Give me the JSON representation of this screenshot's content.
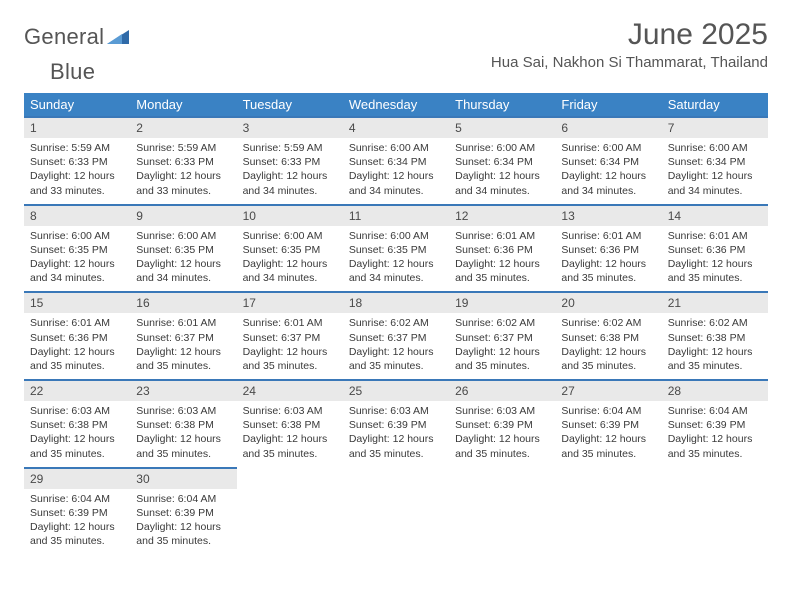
{
  "brand": {
    "word1": "General",
    "word2": "Blue"
  },
  "title": "June 2025",
  "location": "Hua Sai, Nakhon Si Thammarat, Thailand",
  "colors": {
    "header_bg": "#3a82c4",
    "header_fg": "#ffffff",
    "daynum_bg": "#e9e9e9",
    "rule": "#3a78b8",
    "text": "#3a3a3a",
    "title": "#555555"
  },
  "weekdays": [
    "Sunday",
    "Monday",
    "Tuesday",
    "Wednesday",
    "Thursday",
    "Friday",
    "Saturday"
  ],
  "weeks": [
    [
      {
        "n": "1",
        "sr": "5:59 AM",
        "ss": "6:33 PM",
        "dl": "12 hours and 33 minutes."
      },
      {
        "n": "2",
        "sr": "5:59 AM",
        "ss": "6:33 PM",
        "dl": "12 hours and 33 minutes."
      },
      {
        "n": "3",
        "sr": "5:59 AM",
        "ss": "6:33 PM",
        "dl": "12 hours and 34 minutes."
      },
      {
        "n": "4",
        "sr": "6:00 AM",
        "ss": "6:34 PM",
        "dl": "12 hours and 34 minutes."
      },
      {
        "n": "5",
        "sr": "6:00 AM",
        "ss": "6:34 PM",
        "dl": "12 hours and 34 minutes."
      },
      {
        "n": "6",
        "sr": "6:00 AM",
        "ss": "6:34 PM",
        "dl": "12 hours and 34 minutes."
      },
      {
        "n": "7",
        "sr": "6:00 AM",
        "ss": "6:34 PM",
        "dl": "12 hours and 34 minutes."
      }
    ],
    [
      {
        "n": "8",
        "sr": "6:00 AM",
        "ss": "6:35 PM",
        "dl": "12 hours and 34 minutes."
      },
      {
        "n": "9",
        "sr": "6:00 AM",
        "ss": "6:35 PM",
        "dl": "12 hours and 34 minutes."
      },
      {
        "n": "10",
        "sr": "6:00 AM",
        "ss": "6:35 PM",
        "dl": "12 hours and 34 minutes."
      },
      {
        "n": "11",
        "sr": "6:00 AM",
        "ss": "6:35 PM",
        "dl": "12 hours and 34 minutes."
      },
      {
        "n": "12",
        "sr": "6:01 AM",
        "ss": "6:36 PM",
        "dl": "12 hours and 35 minutes."
      },
      {
        "n": "13",
        "sr": "6:01 AM",
        "ss": "6:36 PM",
        "dl": "12 hours and 35 minutes."
      },
      {
        "n": "14",
        "sr": "6:01 AM",
        "ss": "6:36 PM",
        "dl": "12 hours and 35 minutes."
      }
    ],
    [
      {
        "n": "15",
        "sr": "6:01 AM",
        "ss": "6:36 PM",
        "dl": "12 hours and 35 minutes."
      },
      {
        "n": "16",
        "sr": "6:01 AM",
        "ss": "6:37 PM",
        "dl": "12 hours and 35 minutes."
      },
      {
        "n": "17",
        "sr": "6:01 AM",
        "ss": "6:37 PM",
        "dl": "12 hours and 35 minutes."
      },
      {
        "n": "18",
        "sr": "6:02 AM",
        "ss": "6:37 PM",
        "dl": "12 hours and 35 minutes."
      },
      {
        "n": "19",
        "sr": "6:02 AM",
        "ss": "6:37 PM",
        "dl": "12 hours and 35 minutes."
      },
      {
        "n": "20",
        "sr": "6:02 AM",
        "ss": "6:38 PM",
        "dl": "12 hours and 35 minutes."
      },
      {
        "n": "21",
        "sr": "6:02 AM",
        "ss": "6:38 PM",
        "dl": "12 hours and 35 minutes."
      }
    ],
    [
      {
        "n": "22",
        "sr": "6:03 AM",
        "ss": "6:38 PM",
        "dl": "12 hours and 35 minutes."
      },
      {
        "n": "23",
        "sr": "6:03 AM",
        "ss": "6:38 PM",
        "dl": "12 hours and 35 minutes."
      },
      {
        "n": "24",
        "sr": "6:03 AM",
        "ss": "6:38 PM",
        "dl": "12 hours and 35 minutes."
      },
      {
        "n": "25",
        "sr": "6:03 AM",
        "ss": "6:39 PM",
        "dl": "12 hours and 35 minutes."
      },
      {
        "n": "26",
        "sr": "6:03 AM",
        "ss": "6:39 PM",
        "dl": "12 hours and 35 minutes."
      },
      {
        "n": "27",
        "sr": "6:04 AM",
        "ss": "6:39 PM",
        "dl": "12 hours and 35 minutes."
      },
      {
        "n": "28",
        "sr": "6:04 AM",
        "ss": "6:39 PM",
        "dl": "12 hours and 35 minutes."
      }
    ],
    [
      {
        "n": "29",
        "sr": "6:04 AM",
        "ss": "6:39 PM",
        "dl": "12 hours and 35 minutes."
      },
      {
        "n": "30",
        "sr": "6:04 AM",
        "ss": "6:39 PM",
        "dl": "12 hours and 35 minutes."
      },
      null,
      null,
      null,
      null,
      null
    ]
  ],
  "labels": {
    "sunrise": "Sunrise: ",
    "sunset": "Sunset: ",
    "daylight": "Daylight: "
  }
}
